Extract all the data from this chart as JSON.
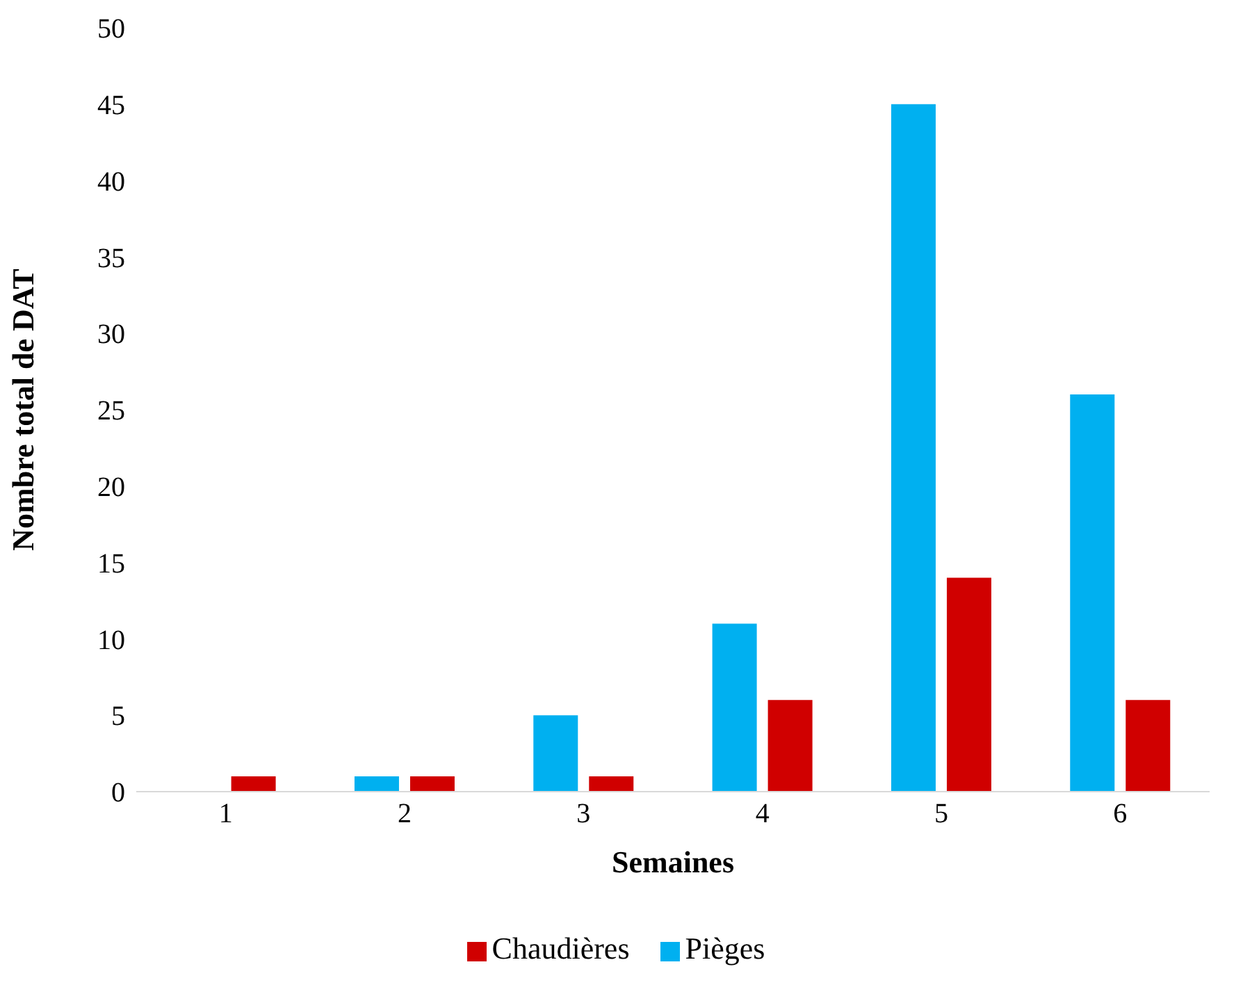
{
  "chart_data": {
    "type": "bar",
    "xlabel": "Semaines",
    "ylabel": "Nombre total de DAT",
    "categories": [
      "1",
      "2",
      "3",
      "4",
      "5",
      "6"
    ],
    "series": [
      {
        "name": "Pièges",
        "color": "#00b0f0",
        "values": [
          0,
          1,
          5,
          11,
          45,
          26
        ]
      },
      {
        "name": "Chaudières",
        "color": "#d00000",
        "values": [
          1,
          1,
          1,
          6,
          14,
          6
        ]
      }
    ],
    "ylim": [
      0,
      50
    ],
    "yticks": [
      0,
      5,
      10,
      15,
      20,
      25,
      30,
      35,
      40,
      45,
      50
    ],
    "grid": false,
    "legend": "bottom"
  }
}
